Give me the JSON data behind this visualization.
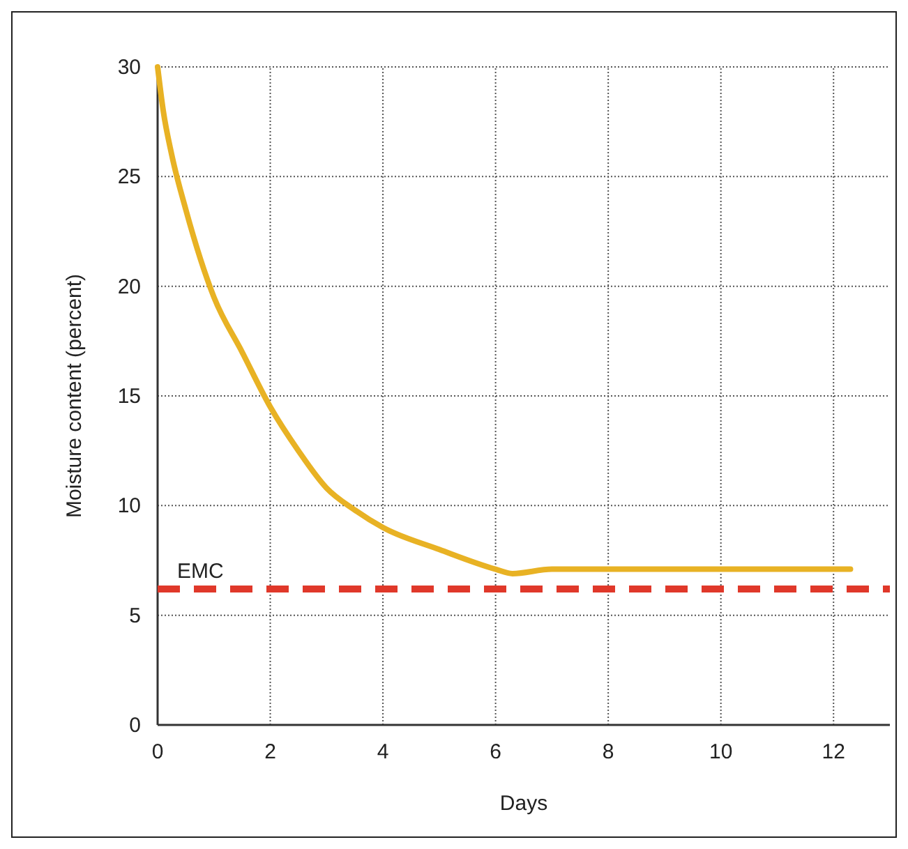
{
  "chart_data": {
    "type": "line",
    "xlabel": "Days",
    "ylabel": "Moisture content (percent)",
    "xlim": [
      0,
      13
    ],
    "ylim": [
      0,
      30
    ],
    "xticks": [
      0,
      2,
      4,
      6,
      8,
      10,
      12
    ],
    "yticks": [
      0,
      5,
      10,
      15,
      20,
      25,
      30
    ],
    "grid": true,
    "series": [
      {
        "color": "#e8b224",
        "x": [
          0,
          0.1,
          0.25,
          0.5,
          1,
          1.5,
          2,
          2.5,
          3,
          3.5,
          4,
          5,
          6,
          6.3,
          7,
          8,
          10,
          12.3
        ],
        "values": [
          30,
          28,
          26,
          23.5,
          19.5,
          17,
          14.5,
          12.5,
          10.8,
          9.8,
          9,
          8,
          7.1,
          6.9,
          7.1,
          7.1,
          7.1,
          7.1
        ]
      }
    ],
    "ref_lines": [
      {
        "axis": "y",
        "value": 6.2,
        "label": "EMC",
        "color": "#e0382a",
        "line_style": "dashed"
      }
    ]
  }
}
